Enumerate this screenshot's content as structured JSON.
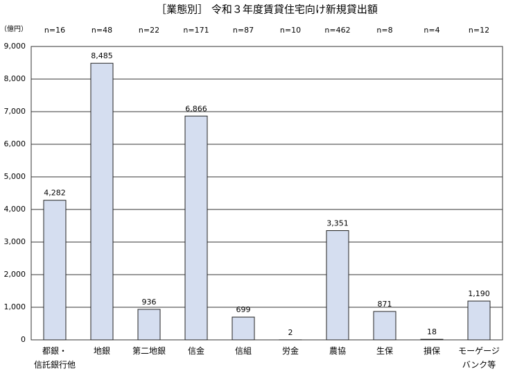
{
  "chart_data": {
    "type": "bar",
    "title": "［業態別］ 令和３年度賃貸住宅向け新規貸出額",
    "y_unit": "（億円）",
    "categories": [
      "都銀・\n信託銀行他",
      "地銀",
      "第二地銀",
      "信金",
      "信組",
      "労金",
      "農協",
      "生保",
      "損保",
      "モーゲージ\nバンク等"
    ],
    "n_labels": [
      "n=16",
      "n=48",
      "n=22",
      "n=171",
      "n=87",
      "n=10",
      "n=462",
      "n=8",
      "n=4",
      "n=12"
    ],
    "values": [
      4282,
      8485,
      936,
      6866,
      699,
      2,
      3351,
      871,
      18,
      1190
    ],
    "value_labels": [
      "4,282",
      "8,485",
      "936",
      "6,866",
      "699",
      "2",
      "3,351",
      "871",
      "18",
      "1,190"
    ],
    "color": "#d5def0",
    "ylim": [
      0,
      9000
    ],
    "yticks": [
      0,
      {
        "value": 1000,
        "label": "1,000"
      },
      {
        "value": 2000,
        "label": "2,000"
      },
      {
        "value": 3000,
        "label": "3,000"
      },
      {
        "value": 4000,
        "label": "4,000"
      },
      {
        "value": 5000,
        "label": "5,000"
      },
      {
        "value": 6000,
        "label": "6,000"
      },
      {
        "value": 7000,
        "label": "7,000"
      },
      {
        "value": 8000,
        "label": "8,000"
      },
      {
        "value": 9000,
        "label": "9,000"
      }
    ],
    "grid": true
  }
}
